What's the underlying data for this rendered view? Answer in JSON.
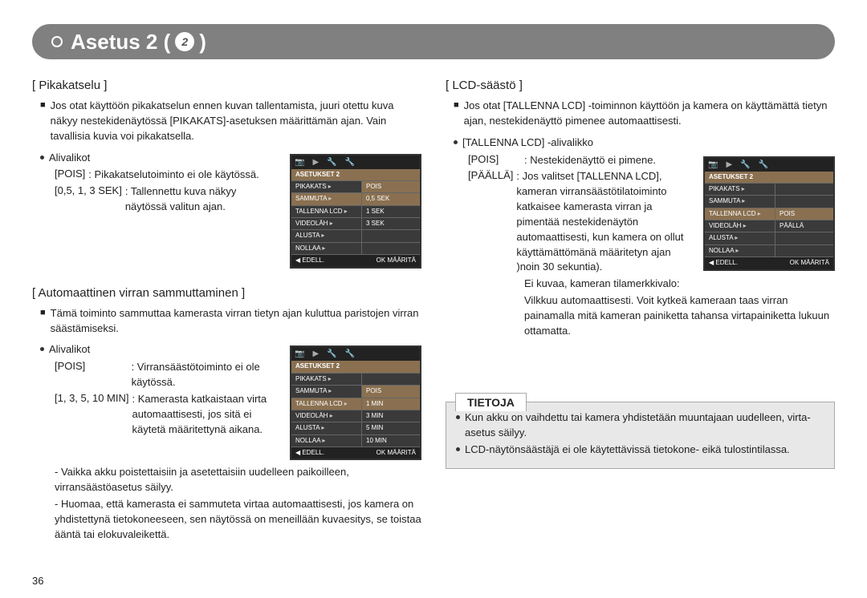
{
  "header": {
    "title_prefix": "Asetus 2 (",
    "title_suffix": ")",
    "icon_text": "2"
  },
  "page_number": "36",
  "left": {
    "sec1": {
      "title": "[ Pikakatselu ]",
      "intro": "Jos otat käyttöön pikakatselun ennen kuvan tallentamista, juuri otettu kuva näkyy nestekidenäytössä [PIKAKATS]-asetuksen määrittämän ajan. Vain tavallisia kuvia voi pikakatsella.",
      "sub_label": "Alivalikot",
      "row1_l": "[POIS]",
      "row1_r": ": Pikakatselutoiminto ei ole käytössä.",
      "row2_l": "[0,5, 1, 3 SEK]",
      "row2_r": ": Tallennettu kuva näkyy näytössä valitun ajan.",
      "menu": {
        "title": "ASETUKSET 2",
        "rows": [
          {
            "l": "PIKAKATS",
            "r": "POIS",
            "hl_r": true
          },
          {
            "l": "SAMMUTA",
            "r": "0,5 SEK",
            "hl_l": true,
            "hl_r": true
          },
          {
            "l": "TALLENNA LCD",
            "r": "1 SEK"
          },
          {
            "l": "VIDEOLÄH",
            "r": "3 SEK"
          },
          {
            "l": "ALUSTA",
            "r": ""
          },
          {
            "l": "NOLLAA",
            "r": ""
          }
        ],
        "foot_l": "◀   EDELL.",
        "foot_r": "OK  MÄÄRITÄ"
      }
    },
    "sec2": {
      "title": "[ Automaattinen virran sammuttaminen ]",
      "intro": "Tämä toiminto sammuttaa kamerasta virran tietyn ajan kuluttua paristojen virran säästämiseksi.",
      "sub_label": "Alivalikot",
      "row1_l": "[POIS]",
      "row1_r": ": Virransäästötoiminto ei ole käytössä.",
      "row2_l": "[1, 3, 5, 10 MIN]",
      "row2_r": ": Kamerasta katkaistaan virta automaattisesti, jos sitä ei käytetä määritettynä aikana.",
      "note1": "- Vaikka akku poistettaisiin ja asetettaisiin uudelleen paikoilleen, virransäästöasetus säilyy.",
      "note2": "- Huomaa, että kamerasta ei sammuteta virtaa automaattisesti, jos kamera on yhdistettynä tietokoneeseen, sen näytössä on meneillään kuvaesitys, se toistaa ääntä tai elokuvaleikettä.",
      "menu": {
        "title": "ASETUKSET 2",
        "rows": [
          {
            "l": "PIKAKATS",
            "r": ""
          },
          {
            "l": "SAMMUTA",
            "r": "POIS",
            "hl_r": true
          },
          {
            "l": "TALLENNA LCD",
            "r": "1 MIN",
            "hl_l": true,
            "hl_r": true
          },
          {
            "l": "VIDEOLÄH",
            "r": "3 MIN"
          },
          {
            "l": "ALUSTA",
            "r": "5 MIN"
          },
          {
            "l": "NOLLAA",
            "r": "10 MIN"
          }
        ],
        "foot_l": "◀   EDELL.",
        "foot_r": "OK  MÄÄRITÄ"
      }
    }
  },
  "right": {
    "sec1": {
      "title": "[ LCD-säästö ]",
      "intro": "Jos otat [TALLENNA LCD] -toiminnon käyttöön ja kamera on käyttämättä tietyn ajan, nestekidenäyttö pimenee automaattisesti.",
      "sub_label": "[TALLENNA LCD] -alivalikko",
      "row1_l": "[POIS]",
      "row1_r": ": Nestekidenäyttö ei pimene.",
      "row2_l": "[PÄÄLLÄ]",
      "row2_r": ": Jos valitset [TALLENNA LCD], kameran virransäästötilatoiminto katkaisee kamerasta virran ja pimentää nestekidenäytön automaattisesti, kun kamera on ollut käyttämättömänä määritetyn ajan )noin 30 sekuntia).",
      "extra1": "Ei kuvaa, kameran tilamerkkivalo:",
      "extra2": "Vilkkuu automaattisesti. Voit kytkeä kameraan taas virran painamalla mitä kameran painiketta tahansa virtapainiketta lukuun ottamatta.",
      "menu": {
        "title": "ASETUKSET 2",
        "rows": [
          {
            "l": "PIKAKATS",
            "r": ""
          },
          {
            "l": "SAMMUTA",
            "r": ""
          },
          {
            "l": "TALLENNA LCD",
            "r": "POIS",
            "hl_l": true,
            "hl_r": true
          },
          {
            "l": "VIDEOLÄH",
            "r": "PÄÄLLÄ"
          },
          {
            "l": "ALUSTA",
            "r": ""
          },
          {
            "l": "NOLLAA",
            "r": ""
          }
        ],
        "foot_l": "◀   EDELL.",
        "foot_r": "OK  MÄÄRITÄ"
      }
    },
    "info": {
      "title": "TIETOJA",
      "b1": "Kun akku on vaihdettu tai kamera yhdistetään muuntajaan uudelleen, virta-asetus säilyy.",
      "b2": "LCD-näytönsäästäjä ei ole käytettävissä tietokone- eikä tulostintilassa."
    }
  }
}
